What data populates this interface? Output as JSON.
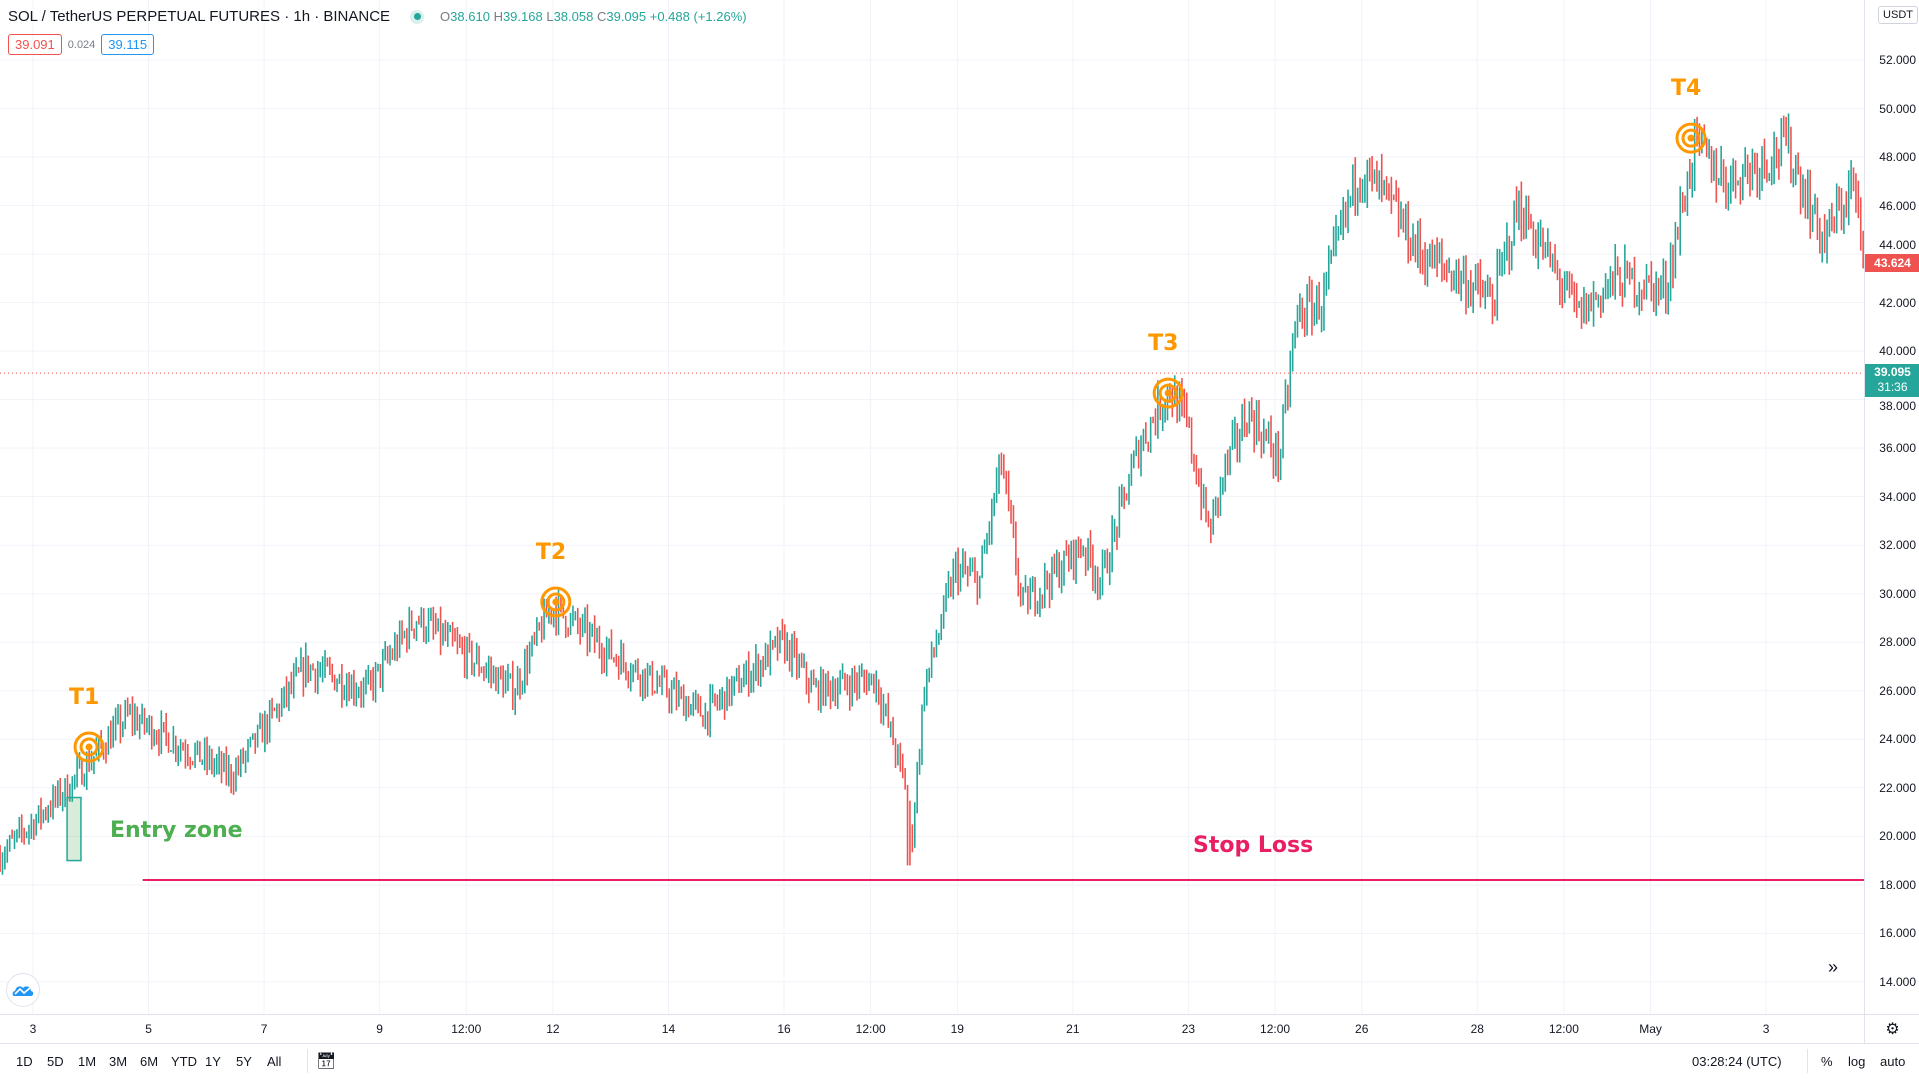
{
  "header": {
    "symbol": "SOL / TetherUS PERPETUAL FUTURES · 1h · BINANCE",
    "ohlc": {
      "o_label": "O",
      "o": "38.610",
      "h_label": "H",
      "h": "39.168",
      "l_label": "L",
      "l": "38.058",
      "c_label": "C",
      "c": "39.095",
      "change": "+0.488 (+1.26%)"
    },
    "bid": "39.091",
    "spread": "0.024",
    "ask": "39.115"
  },
  "price_axis": {
    "currency": "USDT",
    "ticks": [
      "52.000",
      "50.000",
      "48.000",
      "46.000",
      "44.000",
      "42.000",
      "40.000",
      "38.000",
      "36.000",
      "34.000",
      "32.000",
      "30.000",
      "28.000",
      "26.000",
      "24.000",
      "22.000",
      "20.000",
      "18.000",
      "16.000",
      "14.000"
    ],
    "last_price_label": "43.624",
    "current_price_label": "39.095",
    "countdown": "31:36"
  },
  "time_axis": {
    "ticks": [
      {
        "label": "3",
        "day": 0
      },
      {
        "label": "5",
        "day": 2
      },
      {
        "label": "7",
        "day": 4
      },
      {
        "label": "9",
        "day": 6
      },
      {
        "label": "12:00",
        "day": 7.5
      },
      {
        "label": "12",
        "day": 9
      },
      {
        "label": "14",
        "day": 11
      },
      {
        "label": "16",
        "day": 13
      },
      {
        "label": "12:00",
        "day": 14.5
      },
      {
        "label": "19",
        "day": 16
      },
      {
        "label": "21",
        "day": 18
      },
      {
        "label": "23",
        "day": 20
      },
      {
        "label": "12:00",
        "day": 21.5
      },
      {
        "label": "26",
        "day": 23
      },
      {
        "label": "28",
        "day": 25
      },
      {
        "label": "12:00",
        "day": 26.5
      },
      {
        "label": "May",
        "day": 28
      },
      {
        "label": "3",
        "day": 30
      }
    ]
  },
  "bottom_bar": {
    "ranges": [
      "1D",
      "5D",
      "1M",
      "3M",
      "6M",
      "YTD",
      "1Y",
      "5Y",
      "All"
    ],
    "clock": "03:28:24 (UTC)",
    "pct": "%",
    "log": "log",
    "auto": "auto"
  },
  "colors": {
    "up": "#26a69a",
    "down": "#ef5350",
    "target": "#ff9800",
    "entry": "#4caf50",
    "stop": "#e91e63"
  },
  "chart_data": {
    "type": "candlestick",
    "title": "SOL / TetherUS PERPETUAL FUTURES · 1h · BINANCE",
    "xlabel": "",
    "ylabel": "USDT",
    "ylim": [
      12.2,
      54.5
    ],
    "xlim_days": [
      -0.57,
      31.7
    ],
    "grid": true,
    "price_path": [
      [
        -0.57,
        19.2
      ],
      [
        0.59,
        22
      ],
      [
        1.65,
        25
      ],
      [
        3.45,
        22.5
      ],
      [
        4.73,
        27
      ],
      [
        5.78,
        26
      ],
      [
        6.63,
        29
      ],
      [
        8.33,
        26
      ],
      [
        8.97,
        29.5
      ],
      [
        10.02,
        27.5
      ],
      [
        11.62,
        25
      ],
      [
        12.98,
        28
      ],
      [
        13.52,
        26
      ],
      [
        14.58,
        26.5
      ],
      [
        15.11,
        22
      ],
      [
        15.2,
        19.5
      ],
      [
        15.42,
        26
      ],
      [
        15.96,
        31
      ],
      [
        16.38,
        30.5
      ],
      [
        16.76,
        35.5
      ],
      [
        17.12,
        29.5
      ],
      [
        18.17,
        32
      ],
      [
        18.49,
        30.5
      ],
      [
        19.13,
        36
      ],
      [
        19.66,
        38.5
      ],
      [
        19.97,
        37
      ],
      [
        20.36,
        32.5
      ],
      [
        20.62,
        35
      ],
      [
        21.03,
        37.5
      ],
      [
        21.57,
        35.5
      ],
      [
        21.88,
        41.5
      ],
      [
        22.31,
        42
      ],
      [
        22.94,
        47.5
      ],
      [
        23.37,
        46.5
      ],
      [
        24.01,
        44
      ],
      [
        24.74,
        43
      ],
      [
        25.27,
        42
      ],
      [
        25.71,
        46
      ],
      [
        26.76,
        41.5
      ],
      [
        27.4,
        43
      ],
      [
        28.25,
        42.5
      ],
      [
        28.77,
        48.5
      ],
      [
        29.31,
        47
      ],
      [
        30.36,
        48.5
      ],
      [
        31.0,
        44.5
      ],
      [
        31.52,
        47
      ],
      [
        31.67,
        43.6
      ]
    ],
    "current_price": 39.095,
    "last_price": 43.624,
    "annotations": {
      "targets": [
        {
          "label": "T1",
          "day": 0.97,
          "price": 23.68
        },
        {
          "label": "T2",
          "day": 9.05,
          "price": 29.66
        },
        {
          "label": "T3",
          "day": 19.65,
          "price": 38.27
        },
        {
          "label": "T4",
          "day": 28.7,
          "price": 48.78
        }
      ],
      "entry_zone": {
        "label": "Entry zone",
        "day_from": 0.59,
        "day_to": 0.83,
        "price_low": 19.0,
        "price_high": 21.6
      },
      "stop_loss": {
        "label": "Stop Loss",
        "price": 18.2,
        "day_from": 1.9
      }
    }
  }
}
